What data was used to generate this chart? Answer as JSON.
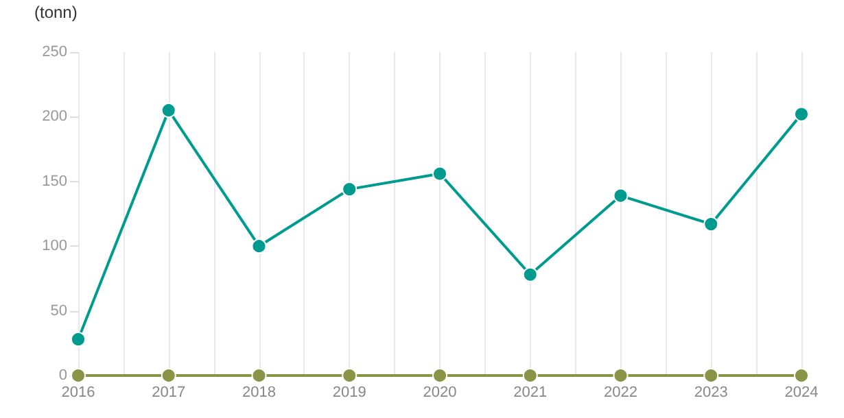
{
  "chart_data": {
    "type": "line",
    "ylabel": "(tonn)",
    "x": [
      2016,
      2017,
      2018,
      2019,
      2020,
      2021,
      2022,
      2023,
      2024
    ],
    "series": [
      {
        "color": "#009b8f",
        "values": [
          28,
          205,
          100,
          144,
          156,
          78,
          139,
          117,
          202
        ]
      },
      {
        "color": "#8a9446",
        "values": [
          0,
          0,
          0,
          0,
          0,
          0,
          0,
          0,
          0
        ]
      }
    ],
    "xlim": [
      2016,
      2024
    ],
    "xticks": [
      2016,
      {
        "value": 2016.5,
        "label": null
      },
      2017,
      {
        "value": 2017.5,
        "label": null
      },
      2018,
      {
        "value": 2018.5,
        "label": null
      },
      2019,
      {
        "value": 2019.5,
        "label": null
      },
      2020,
      {
        "value": 2020.5,
        "label": null
      },
      2021,
      {
        "value": 2021.5,
        "label": null
      },
      2022,
      {
        "value": 2022.5,
        "label": null
      },
      2023,
      {
        "value": 2023.5,
        "label": null
      },
      2024
    ],
    "ylim": [
      0,
      250
    ],
    "yticks": [
      0,
      50,
      100,
      150,
      200,
      250
    ],
    "grid": "x",
    "marker": "circle",
    "line_style": "solid"
  }
}
